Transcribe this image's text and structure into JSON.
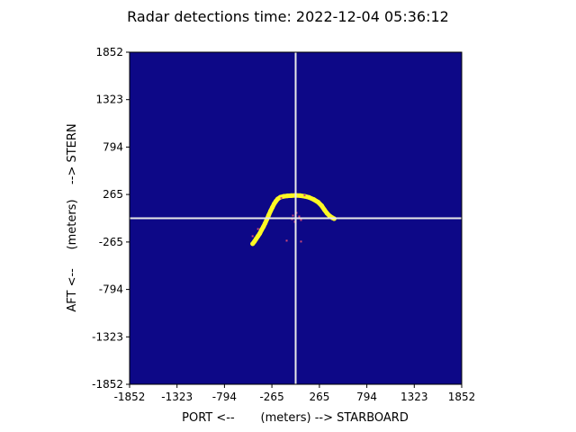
{
  "chart_data": {
    "type": "heatmap",
    "title": "Radar detections time: 2022-12-04 05:36:12",
    "xlabel": "PORT <--       (meters) --> STARBOARD",
    "ylabel": "AFT <--     (meters)    --> STERN",
    "xlim": [
      -1852,
      1852
    ],
    "ylim": [
      -1852,
      1852
    ],
    "xticks": [
      "-1852",
      "-1323",
      "-794",
      "-265",
      "265",
      "794",
      "1323",
      "1852"
    ],
    "yticks": [
      "1852",
      "1323",
      "794",
      "265",
      "-265",
      "-794",
      "-1323",
      "-1852"
    ],
    "tick_values": [
      -1852,
      -1323,
      -794,
      -265,
      265,
      794,
      1323,
      1852
    ],
    "crosshair": {
      "x": 0,
      "y": 0
    },
    "colors": {
      "background": "#0d0887",
      "detection": "#fdf924",
      "weak": "#cc4778",
      "crosshair": "#e8e8e8"
    },
    "detections": [
      {
        "x": -480,
        "y": -285
      },
      {
        "x": -460,
        "y": -260
      },
      {
        "x": -440,
        "y": -230
      },
      {
        "x": -420,
        "y": -200
      },
      {
        "x": -400,
        "y": -170
      },
      {
        "x": -380,
        "y": -130
      },
      {
        "x": -360,
        "y": -95
      },
      {
        "x": -340,
        "y": -55
      },
      {
        "x": -320,
        "y": -10
      },
      {
        "x": -300,
        "y": 35
      },
      {
        "x": -280,
        "y": 80
      },
      {
        "x": -260,
        "y": 120
      },
      {
        "x": -240,
        "y": 160
      },
      {
        "x": -220,
        "y": 190
      },
      {
        "x": -200,
        "y": 215
      },
      {
        "x": -170,
        "y": 235
      },
      {
        "x": -130,
        "y": 245
      },
      {
        "x": -90,
        "y": 250
      },
      {
        "x": -50,
        "y": 252
      },
      {
        "x": 0,
        "y": 255
      },
      {
        "x": 50,
        "y": 252
      },
      {
        "x": 100,
        "y": 245
      },
      {
        "x": 150,
        "y": 232
      },
      {
        "x": 200,
        "y": 210
      },
      {
        "x": 250,
        "y": 180
      },
      {
        "x": 290,
        "y": 140
      },
      {
        "x": 320,
        "y": 95
      },
      {
        "x": 350,
        "y": 55
      },
      {
        "x": 380,
        "y": 25
      },
      {
        "x": 410,
        "y": 5
      },
      {
        "x": 430,
        "y": -5
      }
    ],
    "weak_returns": [
      {
        "x": -30,
        "y": 30
      },
      {
        "x": 40,
        "y": 20
      },
      {
        "x": -10,
        "y": -40
      },
      {
        "x": 60,
        "y": -20
      },
      {
        "x": -40,
        "y": -10
      },
      {
        "x": 10,
        "y": 60
      },
      {
        "x": -100,
        "y": -250
      },
      {
        "x": 60,
        "y": -260
      },
      {
        "x": -480,
        "y": -200
      },
      {
        "x": -420,
        "y": -120
      },
      {
        "x": 100,
        "y": 255
      },
      {
        "x": -160,
        "y": 225
      }
    ]
  }
}
